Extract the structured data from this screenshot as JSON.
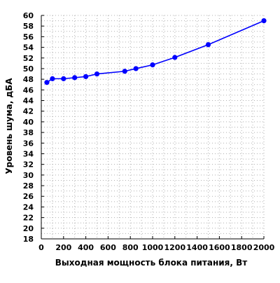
{
  "chart_data": {
    "type": "line",
    "xlabel": "Выходная мощность блока питания, Вт",
    "ylabel": "Уровень шума, дБА",
    "xlim": [
      0,
      2000
    ],
    "ylim": [
      18,
      60
    ],
    "x_ticks": [
      0,
      200,
      400,
      600,
      800,
      1000,
      1200,
      1400,
      1600,
      1800,
      2000
    ],
    "y_ticks": [
      18,
      20,
      22,
      24,
      26,
      28,
      30,
      32,
      34,
      36,
      38,
      40,
      42,
      44,
      46,
      48,
      50,
      52,
      54,
      56,
      58,
      60
    ],
    "grid": true,
    "grid_minor": true,
    "legend": "none",
    "colors": {
      "series": "#0000ff",
      "grid": "#b0b0b0",
      "axis": "#000000"
    },
    "series": [
      {
        "x": [
          50,
          100,
          200,
          300,
          400,
          500,
          750,
          850,
          1000,
          1200,
          1500,
          2000
        ],
        "y": [
          47.4,
          48.1,
          48.1,
          48.3,
          48.5,
          49.0,
          49.5,
          50.0,
          50.7,
          52.1,
          54.5,
          59.0
        ]
      }
    ]
  }
}
